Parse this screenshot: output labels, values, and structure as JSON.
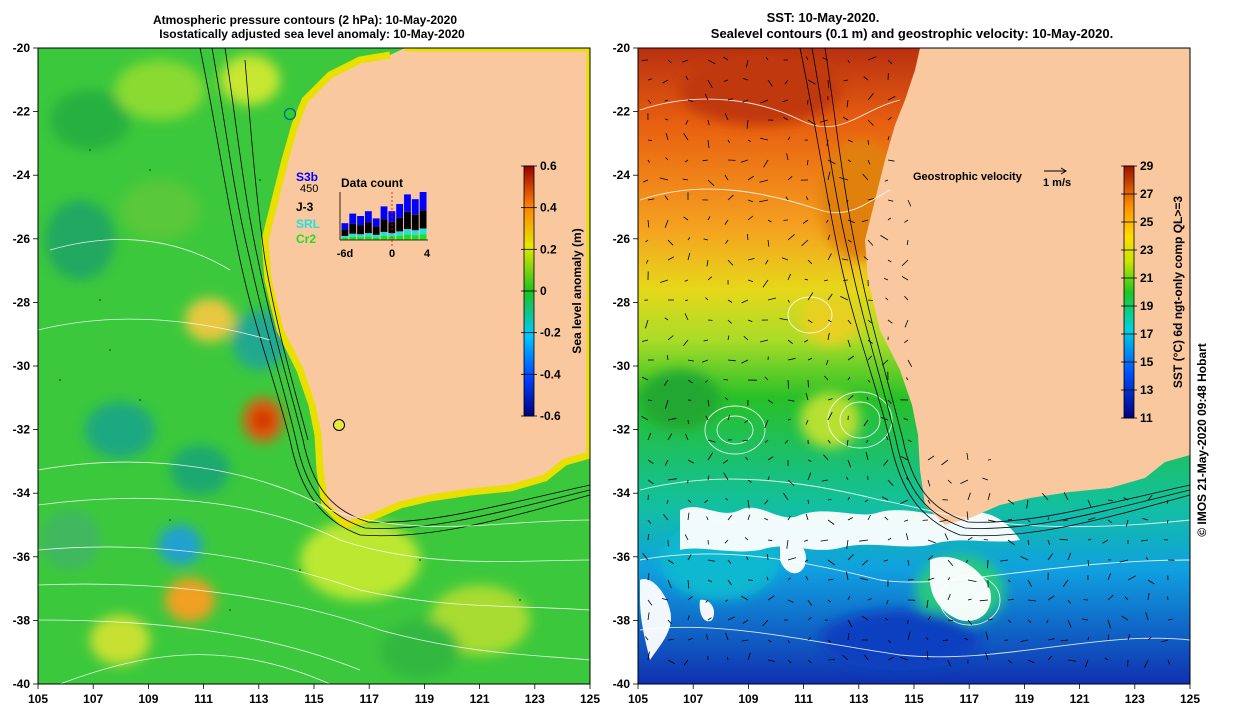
{
  "left_panel": {
    "title_line1": "Atmospheric pressure contours (2 hPa): 10-May-2020",
    "title_line2": "Isostatically adjusted sea level anomaly: 10-May-2020",
    "lon_labels": [
      "105",
      "107",
      "109",
      "111",
      "113",
      "115",
      "117",
      "119",
      "121",
      "123",
      "125"
    ],
    "lat_labels": [
      "-20",
      "-22",
      "-24",
      "-26",
      "-28",
      "-30",
      "-32",
      "-34",
      "-36",
      "-38",
      "-40"
    ],
    "colorbar": {
      "label": "Sea level anomaly (m)",
      "ticks": [
        "0.6",
        "0.4",
        "0.2",
        "0",
        "-0.2",
        "-0.4",
        "-0.6"
      ],
      "range": [
        -0.6,
        0.6
      ]
    },
    "data_count": {
      "title": "Data count",
      "max_label": "450",
      "x_labels": [
        "-6d",
        "0",
        "4"
      ],
      "missions": [
        {
          "name": "S3b",
          "color": "#0000ff"
        },
        {
          "name": "J-3",
          "color": "#000000"
        },
        {
          "name": "SRL",
          "color": "#22e0e0"
        },
        {
          "name": "Cr2",
          "color": "#22dd22"
        }
      ],
      "bar_heights": [
        0.35,
        0.55,
        0.5,
        0.6,
        0.45,
        0.7,
        0.6,
        0.75,
        0.95,
        0.85,
        1.0
      ]
    }
  },
  "right_panel": {
    "title_line1": "SST: 10-May-2020.",
    "title_line2": "Sealevel contours (0.1 m) and geostrophic velocity: 10-May-2020.",
    "lon_labels": [
      "105",
      "107",
      "109",
      "111",
      "113",
      "115",
      "117",
      "119",
      "121",
      "123",
      "125"
    ],
    "lat_labels": [
      "-20",
      "-22",
      "-24",
      "-26",
      "-28",
      "-30",
      "-32",
      "-34",
      "-36",
      "-38",
      "-40"
    ],
    "velocity_key": {
      "label": "Geostrophic velocity",
      "scale": "1 m/s"
    },
    "colorbar": {
      "label": "SST (°C) 6d ngt-only comp QL>=3",
      "ticks": [
        "29",
        "27",
        "25",
        "23",
        "21",
        "19",
        "17",
        "15",
        "13",
        "11"
      ],
      "range": [
        11,
        29
      ]
    }
  },
  "credit": "© IMOS 21-May-2020 09:48 Hobart",
  "colors": {
    "land": "#f9c89e",
    "sla_zero": "#1fc21f",
    "sst_warm": "#e06000",
    "sst_cold": "#1030c0"
  }
}
